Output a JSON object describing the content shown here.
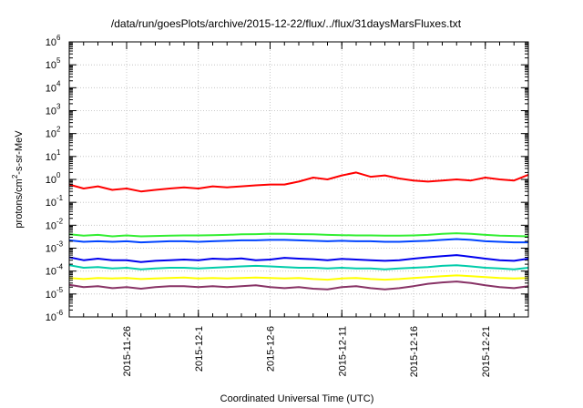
{
  "chart_data": {
    "type": "line",
    "title": "/data/run/goesPlots/archive/2015-12-22/flux/../flux/31daysMarsFluxes.txt",
    "xlabel": "Coordinated Universal Time (UTC)",
    "ylabel": "protons/cm2-s-sr-MeV",
    "ylabel_parts": {
      "pre": "protons/cm",
      "sup": "2",
      "post": "-s-sr-MeV"
    },
    "y_scale": "log",
    "ylim": [
      1e-06,
      1000000.0
    ],
    "xlim": [
      "2015-11-22",
      "2015-12-24"
    ],
    "grid": true,
    "y_tick_labels": [
      {
        "base": "10",
        "exp": "-6",
        "value": 1e-06
      },
      {
        "base": "10",
        "exp": "-5",
        "value": 1e-05
      },
      {
        "base": "10",
        "exp": "-4",
        "value": 0.0001
      },
      {
        "base": "10",
        "exp": "-3",
        "value": 0.001
      },
      {
        "base": "10",
        "exp": "-2",
        "value": 0.01
      },
      {
        "base": "10",
        "exp": "-1",
        "value": 0.1
      },
      {
        "base": "10",
        "exp": "0",
        "value": 1
      },
      {
        "base": "10",
        "exp": "1",
        "value": 10
      },
      {
        "base": "10",
        "exp": "2",
        "value": 100
      },
      {
        "base": "10",
        "exp": "3",
        "value": 1000
      },
      {
        "base": "10",
        "exp": "4",
        "value": 10000
      },
      {
        "base": "10",
        "exp": "5",
        "value": 100000
      },
      {
        "base": "10",
        "exp": "6",
        "value": 1000000
      }
    ],
    "x_tick_labels": [
      "2015-11-26",
      "2015-12-1",
      "2015-12-6",
      "2015-12-11",
      "2015-12-16",
      "2015-12-21"
    ],
    "x_tick_dates": [
      "2015-11-26",
      "2015-12-01",
      "2015-12-06",
      "2015-12-11",
      "2015-12-16",
      "2015-12-21"
    ],
    "x": [
      "2015-11-22",
      "2015-11-23",
      "2015-11-24",
      "2015-11-25",
      "2015-11-26",
      "2015-11-27",
      "2015-11-28",
      "2015-11-29",
      "2015-11-30",
      "2015-12-01",
      "2015-12-02",
      "2015-12-03",
      "2015-12-04",
      "2015-12-05",
      "2015-12-06",
      "2015-12-07",
      "2015-12-08",
      "2015-12-09",
      "2015-12-10",
      "2015-12-11",
      "2015-12-12",
      "2015-12-13",
      "2015-12-14",
      "2015-12-15",
      "2015-12-16",
      "2015-12-17",
      "2015-12-18",
      "2015-12-19",
      "2015-12-20",
      "2015-12-21",
      "2015-12-22",
      "2015-12-23",
      "2015-12-24"
    ],
    "series": [
      {
        "color": "#ff0000",
        "values": [
          0.6,
          0.4,
          0.5,
          0.35,
          0.4,
          0.3,
          0.35,
          0.4,
          0.45,
          0.4,
          0.5,
          0.45,
          0.5,
          0.55,
          0.6,
          0.6,
          0.8,
          1.2,
          1.0,
          1.5,
          2.0,
          1.3,
          1.5,
          1.1,
          0.9,
          0.8,
          0.9,
          1.0,
          0.9,
          1.2,
          1.0,
          0.9,
          1.6
        ]
      },
      {
        "color": "#33ee33",
        "values": [
          0.004,
          0.0035,
          0.0038,
          0.0033,
          0.0036,
          0.0033,
          0.0034,
          0.0035,
          0.0036,
          0.0036,
          0.0037,
          0.0038,
          0.004,
          0.0041,
          0.0043,
          0.0042,
          0.0041,
          0.004,
          0.0038,
          0.0037,
          0.0036,
          0.0036,
          0.0035,
          0.0035,
          0.0036,
          0.0038,
          0.0042,
          0.0045,
          0.0042,
          0.0038,
          0.0035,
          0.0034,
          0.0033
        ]
      },
      {
        "color": "#0044ff",
        "values": [
          0.0022,
          0.0019,
          0.002,
          0.0019,
          0.002,
          0.0018,
          0.0019,
          0.002,
          0.002,
          0.0019,
          0.002,
          0.0021,
          0.0022,
          0.0022,
          0.0023,
          0.0023,
          0.0022,
          0.0021,
          0.002,
          0.0021,
          0.002,
          0.002,
          0.0019,
          0.0019,
          0.002,
          0.0021,
          0.0023,
          0.0025,
          0.0023,
          0.002,
          0.0019,
          0.0018,
          0.0018
        ]
      },
      {
        "color": "#0000ee",
        "values": [
          0.0004,
          0.0003,
          0.00035,
          0.0003,
          0.0003,
          0.00025,
          0.00028,
          0.0003,
          0.00032,
          0.0003,
          0.00035,
          0.00033,
          0.00036,
          0.0003,
          0.00032,
          0.00038,
          0.00035,
          0.00033,
          0.0003,
          0.00034,
          0.00032,
          0.0003,
          0.00028,
          0.0003,
          0.00035,
          0.0004,
          0.00045,
          0.0005,
          0.00042,
          0.00035,
          0.0003,
          0.00028,
          0.00035
        ]
      },
      {
        "color": "#00ccaa",
        "values": [
          0.00018,
          0.00014,
          0.00015,
          0.00013,
          0.00014,
          0.00012,
          0.00013,
          0.00014,
          0.00014,
          0.00013,
          0.00014,
          0.00015,
          0.00016,
          0.00017,
          0.00016,
          0.00015,
          0.00014,
          0.00014,
          0.00013,
          0.00014,
          0.00013,
          0.00013,
          0.00012,
          0.00013,
          0.00014,
          0.00015,
          0.00017,
          0.00018,
          0.00016,
          0.00014,
          0.00013,
          0.00012,
          0.00014
        ]
      },
      {
        "color": "#ffff00",
        "values": [
          5e-05,
          4.5e-05,
          5e-05,
          4.8e-05,
          5e-05,
          4.5e-05,
          4.8e-05,
          5e-05,
          5.2e-05,
          4.8e-05,
          5e-05,
          4.8e-05,
          5e-05,
          5.2e-05,
          5e-05,
          4.8e-05,
          5e-05,
          4.5e-05,
          4.2e-05,
          4.8e-05,
          5e-05,
          4.5e-05,
          4.2e-05,
          4.5e-05,
          5e-05,
          5.5e-05,
          6e-05,
          6.5e-05,
          6e-05,
          5.5e-05,
          5e-05,
          4.8e-05,
          5e-05
        ]
      },
      {
        "color": "#883366",
        "values": [
          2.5e-05,
          2e-05,
          2.2e-05,
          1.8e-05,
          2e-05,
          1.7e-05,
          2e-05,
          2.2e-05,
          2.2e-05,
          2e-05,
          2.2e-05,
          2e-05,
          2.2e-05,
          2.4e-05,
          2e-05,
          1.8e-05,
          2e-05,
          1.7e-05,
          1.6e-05,
          2e-05,
          2.2e-05,
          1.8e-05,
          1.6e-05,
          1.8e-05,
          2.2e-05,
          2.8e-05,
          3.2e-05,
          3.5e-05,
          3e-05,
          2.4e-05,
          2e-05,
          1.8e-05,
          2.2e-05
        ]
      }
    ]
  }
}
